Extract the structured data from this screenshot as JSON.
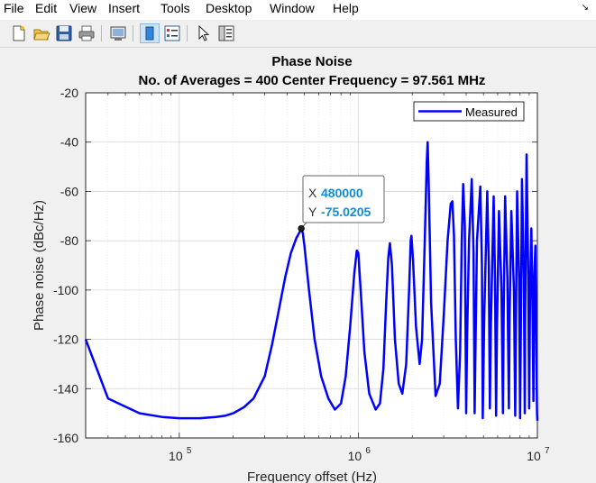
{
  "menu": {
    "items": [
      "File",
      "Edit",
      "View",
      "Insert",
      "Tools",
      "Desktop",
      "Window",
      "Help"
    ]
  },
  "toolbar": {
    "icons": [
      "new-figure-icon",
      "open-file-icon",
      "save-icon",
      "print-icon",
      "link-plot-icon",
      "hide-plot-tools-icon",
      "insert-legend-icon",
      "edit-plot-icon",
      "show-plot-tools-icon"
    ]
  },
  "colors": {
    "line": "#0000ff",
    "datatip_value": "#0b8fd8",
    "background": "#f0f0f0"
  },
  "chart_data": {
    "type": "line",
    "title": "Phase Noise",
    "subtitle": "No. of Averages = 400 Center Frequency = 97.561 MHz",
    "xlabel": "Frequency offset (Hz)",
    "ylabel": "Phase noise (dBc/Hz)",
    "xscale": "log",
    "xlim": [
      30000,
      10000000
    ],
    "ylim": [
      -160,
      -20
    ],
    "xticks": [
      100000,
      1000000,
      10000000
    ],
    "xtick_labels": [
      {
        "base": "10",
        "exp": "5"
      },
      {
        "base": "10",
        "exp": "6"
      },
      {
        "base": "10",
        "exp": "7"
      }
    ],
    "yticks": [
      -20,
      -40,
      -60,
      -80,
      -100,
      -120,
      -140,
      -160
    ],
    "ytick_labels": [
      "-20",
      "-40",
      "-60",
      "-80",
      "-100",
      "-120",
      "-140",
      "-160"
    ],
    "grid": true,
    "legend": {
      "position": "top-right",
      "entries": [
        "Measured"
      ]
    },
    "series": [
      {
        "name": "Measured",
        "x": [
          30000,
          40000,
          60000,
          80000,
          100000,
          130000,
          160000,
          180000,
          200000,
          230000,
          260000,
          300000,
          330000,
          360000,
          390000,
          420000,
          450000,
          470000,
          480000,
          490000,
          500000,
          530000,
          570000,
          620000,
          680000,
          740000,
          800000,
          850000,
          900000,
          950000,
          980000,
          1000000,
          1030000,
          1080000,
          1150000,
          1250000,
          1320000,
          1380000,
          1430000,
          1470000,
          1500000,
          1540000,
          1600000,
          1680000,
          1760000,
          1850000,
          1920000,
          1960000,
          1980000,
          2020000,
          2100000,
          2200000,
          2270000,
          2350000,
          2410000,
          2440000,
          2470000,
          2550000,
          2700000,
          2850000,
          3000000,
          3150000,
          3280000,
          3350000,
          3420000,
          3500000,
          3600000,
          3700000,
          3780000,
          3850000,
          3930000,
          4000000,
          4050000,
          4150000,
          4300000,
          4400000,
          4460000,
          4500000,
          4600000,
          4800000,
          4900000,
          4950000,
          5050000,
          5250000,
          5350000,
          5430000,
          5500000,
          5700000,
          5800000,
          5880000,
          5950000,
          6100000,
          6300000,
          6420000,
          6480000,
          6600000,
          6800000,
          6930000,
          7000000,
          7150000,
          7400000,
          7520000,
          7600000,
          7700000,
          7900000,
          8000000,
          8100000,
          8200000,
          8400000,
          8500000,
          8550000,
          8700000,
          8900000,
          9000000,
          9100000,
          9250000,
          9400000,
          9500000,
          9600000,
          9750000,
          9850000,
          9950000,
          10000000
        ],
        "y": [
          -120,
          -144,
          -150,
          -151.5,
          -152,
          -152,
          -151.5,
          -151,
          -150,
          -147.5,
          -144,
          -135,
          -122,
          -108,
          -95,
          -85,
          -79,
          -76.5,
          -75.02,
          -77,
          -82,
          -100,
          -120,
          -135,
          -144,
          -148.5,
          -146,
          -135,
          -115,
          -93,
          -84,
          -85,
          -100,
          -125,
          -142,
          -148.5,
          -146,
          -132,
          -105,
          -87,
          -81,
          -90,
          -120,
          -138,
          -142,
          -130,
          -100,
          -80,
          -78,
          -88,
          -115,
          -130,
          -120,
          -80,
          -48,
          -40,
          -56,
          -105,
          -143,
          -138,
          -110,
          -80,
          -65,
          -64,
          -78,
          -120,
          -148,
          -125,
          -80,
          -57,
          -74,
          -150,
          -120,
          -80,
          -55,
          -85,
          -150,
          -130,
          -80,
          -58,
          -90,
          -152,
          -110,
          -60,
          -90,
          -148,
          -115,
          -62,
          -95,
          -151,
          -115,
          -68,
          -100,
          -150,
          -110,
          -62,
          -95,
          -148,
          -110,
          -68,
          -100,
          -151,
          -110,
          -60,
          -95,
          -152,
          -110,
          -55,
          -95,
          -150,
          -110,
          -45,
          -95,
          -148,
          -100,
          -75,
          -110,
          -145,
          -95,
          -82,
          -120,
          -150,
          -153
        ]
      }
    ],
    "datatip": {
      "x": 480000,
      "y": -75.0205,
      "x_label": "X",
      "y_label": "Y",
      "x_text": "480000",
      "y_text": "-75.0205"
    }
  }
}
